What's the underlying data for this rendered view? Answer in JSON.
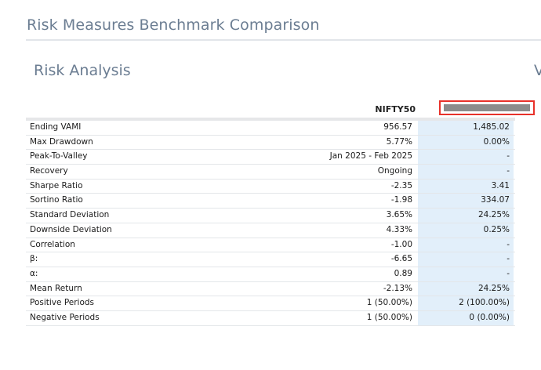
{
  "page": {
    "title": "Risk Measures Benchmark Comparison",
    "section_title": "Risk Analysis",
    "cut_title": "V"
  },
  "table": {
    "columns": {
      "benchmark": "NIFTY50",
      "fund": ""
    },
    "rows": [
      {
        "label": "Ending VAMI",
        "benchmark": "956.57",
        "fund": "1,485.02"
      },
      {
        "label": "Max Drawdown",
        "benchmark": "5.77%",
        "fund": "0.00%"
      },
      {
        "label": "Peak-To-Valley",
        "benchmark": "Jan 2025 - Feb 2025",
        "fund": "-"
      },
      {
        "label": "Recovery",
        "benchmark": "Ongoing",
        "fund": "-"
      },
      {
        "label": "Sharpe Ratio",
        "benchmark": "-2.35",
        "fund": "3.41"
      },
      {
        "label": "Sortino Ratio",
        "benchmark": "-1.98",
        "fund": "334.07"
      },
      {
        "label": "Standard Deviation",
        "benchmark": "3.65%",
        "fund": "24.25%"
      },
      {
        "label": "Downside Deviation",
        "benchmark": "4.33%",
        "fund": "0.25%"
      },
      {
        "label": "Correlation",
        "benchmark": "-1.00",
        "fund": "-"
      },
      {
        "label": "β:",
        "benchmark": "-6.65",
        "fund": "-"
      },
      {
        "label": "α:",
        "benchmark": "0.89",
        "fund": "-"
      },
      {
        "label": "Mean Return",
        "benchmark": "-2.13%",
        "fund": "24.25%"
      },
      {
        "label": "Positive Periods",
        "benchmark": "1 (50.00%)",
        "fund": "2 (100.00%)"
      },
      {
        "label": "Negative Periods",
        "benchmark": "1 (50.00%)",
        "fund": "0 (0.00%)"
      }
    ]
  },
  "colors": {
    "title": "#6b7d92",
    "fund_column_bg": "#e2effa",
    "highlight_border": "#e8312a",
    "redaction": "#8c8c8c"
  }
}
